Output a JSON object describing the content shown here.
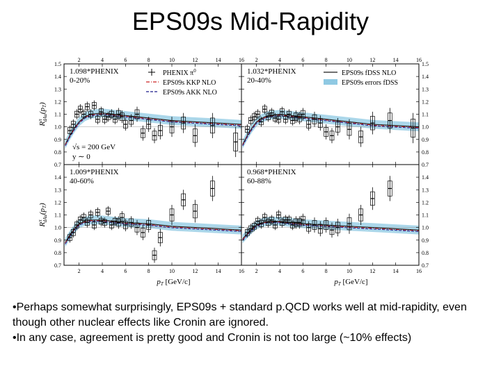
{
  "slide": {
    "title": "EPS09s Mid-Rapidity",
    "bullets": [
      "•Perhaps somewhat surprisingly, EPS09s + standard p.QCD works well at mid-rapidity, even though other nuclear effects like Cronin are ignored.",
      "•In any case, agreement is pretty good and Cronin is not too large (~10% effects)"
    ]
  },
  "chart_data": {
    "type": "scatter",
    "x_axis": {
      "label": "p",
      "label_sub": "T",
      "label_unit": "[GeV/c]",
      "range": [
        0.7,
        16
      ],
      "ticks": [
        2,
        4,
        6,
        8,
        10,
        12,
        14,
        16
      ]
    },
    "y_axis": {
      "label": "R",
      "label_sup": "π",
      "label_sub": "dAu",
      "label_arg": "(p",
      "label_arg_sub": "T",
      "label_arg_end": ")",
      "range": [
        0.7,
        1.5
      ],
      "ticks": [
        "0.7",
        "0.8",
        "0.9",
        "1.0",
        "1.1",
        "1.2",
        "1.3",
        "1.4",
        "1.5"
      ]
    },
    "legend_left": {
      "placement": "top-right",
      "entries": [
        {
          "name": "PHENIX π",
          "name_sup": "0",
          "style": "marker",
          "color": "#000000"
        },
        {
          "name": "EPS09s KKP NLO",
          "style": "dashdot",
          "color": "#cc2222"
        },
        {
          "name": "EPS09s AKK NLO",
          "style": "dashed",
          "color": "#1a1a8c"
        }
      ]
    },
    "legend_right": {
      "placement": "top-right",
      "entries": [
        {
          "name": "EPS09s fDSS NLO",
          "style": "line",
          "color": "#1a1a1a"
        },
        {
          "name": "EPS09s errors fDSS",
          "style": "band",
          "color": "#8fc9e3"
        }
      ]
    },
    "energy_note": {
      "line1": "√s = 200 GeV",
      "line2": "y ∼ 0"
    },
    "panels": [
      {
        "label": "1.098*PHENIX",
        "centrality": "0-20%",
        "theory_x": [
          0.8,
          1.2,
          1.6,
          2.0,
          2.5,
          3.0,
          4.0,
          5.0,
          6.0,
          8.0,
          10.0,
          12.0,
          14.0,
          16.0
        ],
        "theory_y": [
          0.86,
          0.93,
          0.99,
          1.04,
          1.08,
          1.1,
          1.11,
          1.1,
          1.09,
          1.07,
          1.05,
          1.04,
          1.03,
          1.02
        ],
        "band": 0.035,
        "points_x": [
          1.2,
          1.5,
          1.8,
          2.1,
          2.4,
          2.7,
          3.0,
          3.3,
          3.6,
          3.9,
          4.2,
          4.5,
          4.8,
          5.1,
          5.4,
          5.7,
          6.0,
          6.5,
          7.0,
          7.5,
          8.0,
          8.5,
          9.0,
          10.0,
          11.0,
          12.0,
          13.5,
          15.5
        ],
        "points_y": [
          0.97,
          1.02,
          1.1,
          1.14,
          1.1,
          1.16,
          1.1,
          1.17,
          1.06,
          1.12,
          1.06,
          1.08,
          1.1,
          1.06,
          1.1,
          1.08,
          1.02,
          1.05,
          1.1,
          0.95,
          1.02,
          0.93,
          0.97,
          1.0,
          1.03,
          0.93,
          1.01,
          0.88
        ],
        "errors": [
          0.04,
          0.04,
          0.04,
          0.04,
          0.04,
          0.04,
          0.04,
          0.04,
          0.04,
          0.04,
          0.04,
          0.04,
          0.04,
          0.04,
          0.05,
          0.05,
          0.05,
          0.05,
          0.06,
          0.06,
          0.06,
          0.06,
          0.07,
          0.08,
          0.08,
          0.09,
          0.1,
          0.12
        ]
      },
      {
        "label": "1.032*PHENIX",
        "centrality": "20-40%",
        "theory_x": [
          0.8,
          1.2,
          1.6,
          2.0,
          2.5,
          3.0,
          4.0,
          5.0,
          6.0,
          8.0,
          10.0,
          12.0,
          14.0,
          16.0
        ],
        "theory_y": [
          0.86,
          0.93,
          0.99,
          1.04,
          1.07,
          1.09,
          1.1,
          1.09,
          1.08,
          1.06,
          1.04,
          1.02,
          1.01,
          1.0
        ],
        "band": 0.035,
        "points_x": [
          1.2,
          1.5,
          1.8,
          2.1,
          2.4,
          2.7,
          3.0,
          3.3,
          3.6,
          3.9,
          4.2,
          4.5,
          4.8,
          5.1,
          5.4,
          5.7,
          6.0,
          6.5,
          7.0,
          7.5,
          8.0,
          8.5,
          9.0,
          10.0,
          11.0,
          12.0,
          13.5,
          15.5
        ],
        "points_y": [
          0.98,
          1.05,
          1.08,
          1.1,
          1.04,
          1.14,
          1.08,
          1.11,
          1.07,
          1.06,
          1.12,
          1.06,
          1.1,
          1.05,
          1.08,
          1.07,
          1.1,
          1.02,
          1.06,
          1.03,
          0.96,
          0.93,
          1.0,
          0.98,
          0.92,
          1.03,
          1.05,
          0.99
        ],
        "errors": [
          0.04,
          0.04,
          0.04,
          0.04,
          0.04,
          0.04,
          0.04,
          0.04,
          0.04,
          0.04,
          0.04,
          0.04,
          0.04,
          0.04,
          0.05,
          0.05,
          0.05,
          0.05,
          0.06,
          0.06,
          0.06,
          0.06,
          0.07,
          0.08,
          0.08,
          0.09,
          0.1,
          0.12
        ]
      },
      {
        "label": "1.009*PHENIX",
        "centrality": "40-60%",
        "theory_x": [
          0.8,
          1.2,
          1.6,
          2.0,
          2.5,
          3.0,
          4.0,
          5.0,
          6.0,
          8.0,
          10.0,
          12.0,
          14.0,
          16.0
        ],
        "theory_y": [
          0.88,
          0.94,
          0.99,
          1.03,
          1.05,
          1.06,
          1.06,
          1.05,
          1.04,
          1.03,
          1.01,
          1.0,
          0.99,
          0.98
        ],
        "band": 0.035,
        "points_x": [
          1.2,
          1.5,
          1.8,
          2.1,
          2.4,
          2.7,
          3.0,
          3.3,
          3.6,
          3.9,
          4.2,
          4.5,
          4.8,
          5.1,
          5.4,
          5.7,
          6.0,
          6.5,
          7.0,
          7.5,
          8.0,
          8.5,
          9.0,
          10.0,
          11.0,
          12.0,
          13.5
        ],
        "points_y": [
          0.92,
          0.96,
          1.02,
          1.06,
          1.08,
          1.04,
          1.1,
          1.02,
          1.12,
          1.05,
          1.04,
          1.13,
          1.02,
          1.05,
          1.04,
          1.08,
          1.02,
          1.04,
          1.0,
          0.96,
          1.02,
          0.78,
          0.92,
          1.1,
          1.22,
          1.13,
          1.31
        ],
        "errors": [
          0.04,
          0.04,
          0.04,
          0.04,
          0.04,
          0.04,
          0.04,
          0.04,
          0.04,
          0.04,
          0.04,
          0.04,
          0.04,
          0.04,
          0.05,
          0.05,
          0.05,
          0.05,
          0.06,
          0.06,
          0.06,
          0.06,
          0.07,
          0.08,
          0.08,
          0.09,
          0.1
        ]
      },
      {
        "label": "0.968*PHENIX",
        "centrality": "60-88%",
        "theory_x": [
          0.8,
          1.2,
          1.6,
          2.0,
          2.5,
          3.0,
          4.0,
          5.0,
          6.0,
          8.0,
          10.0,
          12.0,
          14.0,
          16.0
        ],
        "theory_y": [
          0.91,
          0.95,
          0.99,
          1.02,
          1.04,
          1.05,
          1.05,
          1.04,
          1.03,
          1.02,
          1.01,
          1.0,
          0.99,
          0.98
        ],
        "band": 0.035,
        "points_x": [
          1.2,
          1.5,
          1.8,
          2.1,
          2.4,
          2.7,
          3.0,
          3.3,
          3.6,
          3.9,
          4.2,
          4.5,
          4.8,
          5.1,
          5.4,
          5.7,
          6.0,
          6.5,
          7.0,
          7.5,
          8.0,
          8.5,
          9.0,
          10.0,
          11.0,
          12.0,
          13.5
        ],
        "points_y": [
          0.96,
          0.99,
          1.01,
          1.05,
          1.03,
          1.08,
          1.04,
          1.06,
          1.02,
          1.1,
          1.04,
          1.06,
          1.06,
          1.02,
          1.04,
          1.04,
          1.06,
          1.0,
          1.02,
          0.99,
          1.02,
          0.98,
          1.0,
          1.03,
          1.1,
          1.23,
          1.31
        ],
        "errors": [
          0.04,
          0.04,
          0.04,
          0.04,
          0.04,
          0.04,
          0.04,
          0.04,
          0.04,
          0.04,
          0.04,
          0.04,
          0.04,
          0.04,
          0.05,
          0.05,
          0.05,
          0.05,
          0.06,
          0.06,
          0.06,
          0.06,
          0.07,
          0.08,
          0.08,
          0.09,
          0.1
        ]
      }
    ]
  }
}
